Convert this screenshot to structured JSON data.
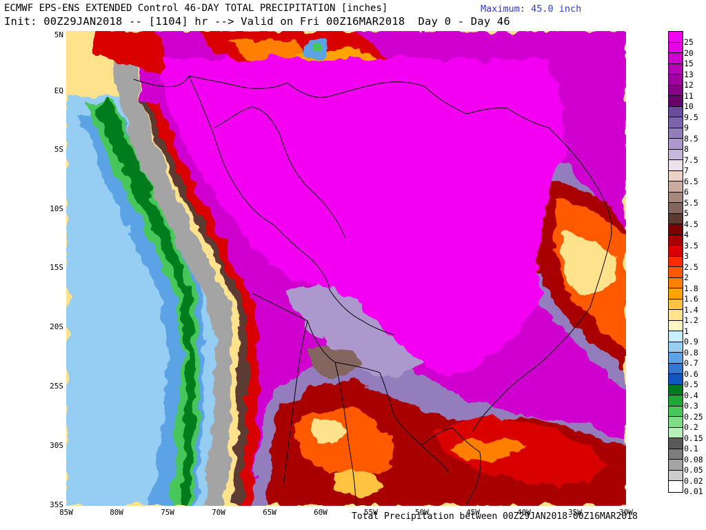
{
  "header": {
    "line1": "ECMWF EPS-ENS EXTENDED Control 46-DAY TOTAL PRECIPITATION [inches]",
    "line2": "Init: 00Z29JAN2018 -- [1104] hr --> Valid on Fri 00Z16MAR2018  Day 0 - Day 46",
    "maximum": "Maximum: 45.0 inch"
  },
  "footer": "Total Precipitation between 00Z29JAN2018-00Z16MAR2018",
  "lat_labels": [
    "5N",
    "EQ",
    "5S",
    "10S",
    "15S",
    "20S",
    "25S",
    "30S",
    "35S"
  ],
  "lon_labels": [
    "85W",
    "80W",
    "75W",
    "70W",
    "65W",
    "60W",
    "55W",
    "50W",
    "45W",
    "40W",
    "35W",
    "30W"
  ],
  "legend": [
    {
      "label": "25",
      "color": "#f300f3"
    },
    {
      "label": "20",
      "color": "#e500e5"
    },
    {
      "label": "15",
      "color": "#cf00cf"
    },
    {
      "label": "13",
      "color": "#b800b8"
    },
    {
      "label": "12",
      "color": "#a100a1"
    },
    {
      "label": "11",
      "color": "#860086"
    },
    {
      "label": "10",
      "color": "#6a006a"
    },
    {
      "label": "9.5",
      "color": "#6a4c9c"
    },
    {
      "label": "9",
      "color": "#7d63ab"
    },
    {
      "label": "8.5",
      "color": "#947dbc"
    },
    {
      "label": "8",
      "color": "#ac98cc"
    },
    {
      "label": "7.5",
      "color": "#c6b8dc"
    },
    {
      "label": "7",
      "color": "#ebe2eb"
    },
    {
      "label": "6.5",
      "color": "#ead3c6"
    },
    {
      "label": "6",
      "color": "#c9ab9f"
    },
    {
      "label": "5.5",
      "color": "#a6887e"
    },
    {
      "label": "5",
      "color": "#84655e"
    },
    {
      "label": "4.5",
      "color": "#5c3a30"
    },
    {
      "label": "4",
      "color": "#7c0000"
    },
    {
      "label": "3.5",
      "color": "#a80000"
    },
    {
      "label": "3",
      "color": "#d90000"
    },
    {
      "label": "2.5",
      "color": "#ff2a00"
    },
    {
      "label": "2",
      "color": "#ff5a00"
    },
    {
      "label": "1.8",
      "color": "#ff7f00"
    },
    {
      "label": "1.6",
      "color": "#ffa300"
    },
    {
      "label": "1.4",
      "color": "#ffc343"
    },
    {
      "label": "1.2",
      "color": "#ffe38c"
    },
    {
      "label": "1",
      "color": "#fff6c4"
    },
    {
      "label": "0.9",
      "color": "#c7eefc"
    },
    {
      "label": "0.8",
      "color": "#96cdf2"
    },
    {
      "label": "0.7",
      "color": "#5ba3e6"
    },
    {
      "label": "0.6",
      "color": "#3277d3"
    },
    {
      "label": "0.5",
      "color": "#0f56bf"
    },
    {
      "label": "0.4",
      "color": "#007b1f"
    },
    {
      "label": "0.3",
      "color": "#1fa83a"
    },
    {
      "label": "0.25",
      "color": "#47c75a"
    },
    {
      "label": "0.2",
      "color": "#7dde85"
    },
    {
      "label": "0.15",
      "color": "#b5f0b8"
    },
    {
      "label": "0.1",
      "color": "#5a5a5a"
    },
    {
      "label": "0.08",
      "color": "#7d7d7d"
    },
    {
      "label": "0.05",
      "color": "#a4a4a4"
    },
    {
      "label": "0.02",
      "color": "#cccccc"
    },
    {
      "label": "0.01",
      "color": "#ffffff"
    }
  ]
}
